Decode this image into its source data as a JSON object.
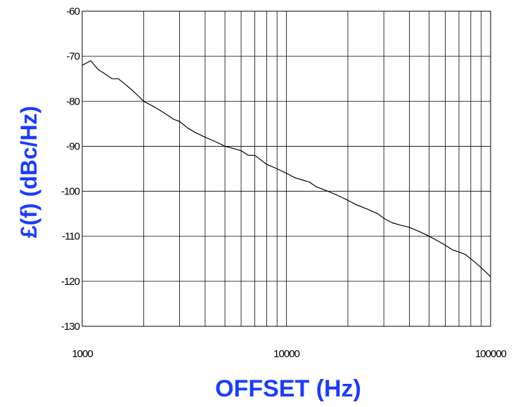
{
  "chart_data": {
    "type": "line",
    "title": "",
    "xlabel": "OFFSET (Hz)",
    "ylabel": "£(f) (dBc/Hz)",
    "x_scale": "log",
    "xlim": [
      1000,
      100000
    ],
    "ylim": [
      -130,
      -60
    ],
    "x_ticks": [
      1000,
      10000,
      100000
    ],
    "x_tick_labels": [
      "1000",
      "10000",
      "100000"
    ],
    "y_ticks": [
      -60,
      -70,
      -80,
      -90,
      -100,
      -110,
      -120,
      -130
    ],
    "y_tick_labels": [
      "-60",
      "-70",
      "-80",
      "-90",
      "-100",
      "-110",
      "-120",
      "-130"
    ],
    "grid": true,
    "label_color": "#1a3cff",
    "line_color": "#000000",
    "series": [
      {
        "x": [
          1000,
          1100,
          1200,
          1300,
          1400,
          1500,
          1600,
          1700,
          1800,
          1900,
          2000,
          2200,
          2400,
          2600,
          2800,
          3000,
          3300,
          3600,
          4000,
          4500,
          5000,
          5500,
          6000,
          6500,
          7000,
          8000,
          9000,
          10000,
          11000,
          12000,
          13000,
          14000,
          15000,
          16000,
          18000,
          20000,
          22000,
          25000,
          28000,
          30000,
          33000,
          36000,
          40000,
          45000,
          50000,
          55000,
          60000,
          65000,
          70000,
          75000,
          80000,
          85000,
          90000,
          95000,
          100000
        ],
        "y": [
          -72,
          -71,
          -73,
          -74,
          -75,
          -75,
          -76,
          -77,
          -78,
          -79,
          -80,
          -81,
          -82,
          -83,
          -84,
          -84.5,
          -86,
          -87,
          -88,
          -89,
          -90,
          -90.5,
          -91,
          -92,
          -92,
          -94,
          -95,
          -96,
          -97,
          -97.5,
          -98,
          -99,
          -99.5,
          -100,
          -101,
          -102,
          -103,
          -104,
          -105,
          -106,
          -107,
          -107.5,
          -108,
          -109,
          -110,
          -111,
          -112,
          -113,
          -113.5,
          -114,
          -115,
          -116,
          -117,
          -118,
          -119
        ]
      }
    ]
  }
}
